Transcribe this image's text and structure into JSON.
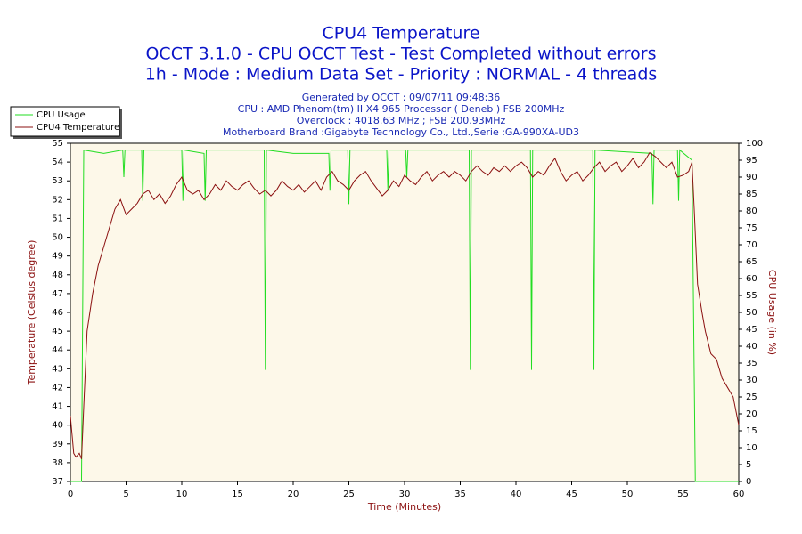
{
  "chart_data": {
    "type": "line",
    "title": "CPU4 Temperature",
    "title_lines": [
      "OCCT 3.1.0 - CPU OCCT Test - Test Completed without errors",
      "1h - Mode : Medium Data Set - Priority : NORMAL - 4 threads"
    ],
    "subtitle_lines": [
      "Generated by OCCT : 09/07/11 09:48:36",
      "CPU : AMD Phenom(tm) II X4 965 Processor ( Deneb ) FSB 200MHz",
      "Overclock : 4018.63 MHz ; FSB 200.93MHz",
      "Motherboard Brand :Gigabyte Technology Co., Ltd.,Serie :GA-990XA-UD3"
    ],
    "xlabel": "Time (Minutes)",
    "ylabel": "Temperature (Celsius degree)",
    "y2label": "CPU Usage (in %)",
    "xlim": [
      0,
      60
    ],
    "xticks": [
      0,
      5,
      10,
      15,
      20,
      25,
      30,
      35,
      40,
      45,
      50,
      55,
      60
    ],
    "ylim": [
      37,
      55
    ],
    "yticks": [
      37,
      38,
      39,
      40,
      41,
      42,
      43,
      44,
      45,
      46,
      47,
      48,
      49,
      50,
      51,
      52,
      53,
      54,
      55
    ],
    "y2lim": [
      0,
      100
    ],
    "y2ticks": [
      0,
      5,
      10,
      15,
      20,
      25,
      30,
      35,
      40,
      45,
      50,
      55,
      60,
      65,
      70,
      75,
      80,
      85,
      90,
      95,
      100
    ],
    "grid": false,
    "legend": "upper left",
    "series": [
      {
        "name": "CPU Usage",
        "color": "#22dd22",
        "axis": "y2",
        "x": [
          0,
          1,
          1.2,
          3,
          4.7,
          4.8,
          4.9,
          6.4,
          6.5,
          6.6,
          10,
          10.1,
          10.2,
          12,
          12.1,
          12.2,
          17.4,
          17.5,
          17.6,
          20,
          23.2,
          23.3,
          23.4,
          24.9,
          25,
          25.1,
          28.4,
          28.5,
          28.6,
          30.1,
          30.2,
          30.3,
          35.8,
          35.9,
          36,
          41.3,
          41.4,
          41.5,
          46.9,
          47,
          47.1,
          52.2,
          52.3,
          52.4,
          54.5,
          54.6,
          54.7,
          55.8,
          56.1,
          60
        ],
        "values": [
          0,
          0,
          98,
          97,
          98,
          90,
          98,
          98,
          83,
          98,
          98,
          83,
          98,
          97,
          83,
          98,
          98,
          33,
          98,
          97,
          97,
          86,
          98,
          98,
          82,
          98,
          98,
          86,
          98,
          98,
          90,
          98,
          98,
          33,
          98,
          98,
          33,
          98,
          98,
          33,
          98,
          97,
          82,
          98,
          98,
          83,
          98,
          95,
          0,
          0
        ]
      },
      {
        "name": "CPU4 Temperature",
        "color": "#8b1010",
        "axis": "y",
        "x": [
          0,
          0.3,
          0.5,
          0.8,
          1,
          1.2,
          1.5,
          2,
          2.5,
          3,
          3.5,
          4,
          4.5,
          5,
          5.5,
          6,
          6.5,
          7,
          7.5,
          8,
          8.5,
          9,
          9.5,
          10,
          10.5,
          11,
          11.5,
          12,
          12.5,
          13,
          13.5,
          14,
          14.5,
          15,
          15.5,
          16,
          16.5,
          17,
          17.5,
          18,
          18.5,
          19,
          19.5,
          20,
          20.5,
          21,
          21.5,
          22,
          22.5,
          23,
          23.5,
          24,
          24.5,
          25,
          25.5,
          26,
          26.5,
          27,
          27.5,
          28,
          28.5,
          29,
          29.5,
          30,
          30.5,
          31,
          31.5,
          32,
          32.5,
          33,
          33.5,
          34,
          34.5,
          35,
          35.5,
          36,
          36.5,
          37,
          37.5,
          38,
          38.5,
          39,
          39.5,
          40,
          40.5,
          41,
          41.5,
          42,
          42.5,
          43,
          43.5,
          44,
          44.5,
          45,
          45.5,
          46,
          46.5,
          47,
          47.5,
          48,
          48.5,
          49,
          49.5,
          50,
          50.5,
          51,
          51.5,
          52,
          52.5,
          53,
          53.5,
          54,
          54.5,
          55,
          55.5,
          55.8,
          56,
          56.3,
          56.7,
          57,
          57.5,
          58,
          58.5,
          59,
          59.5,
          60
        ],
        "values": [
          40.5,
          38.5,
          38.3,
          38.5,
          38.2,
          41,
          45,
          47,
          48.5,
          49.5,
          50.5,
          51.5,
          52,
          51.2,
          51.5,
          51.8,
          52.3,
          52.5,
          52,
          52.3,
          51.8,
          52.2,
          52.8,
          53.2,
          52.5,
          52.3,
          52.5,
          52,
          52.3,
          52.8,
          52.5,
          53,
          52.7,
          52.5,
          52.8,
          53,
          52.6,
          52.3,
          52.5,
          52.2,
          52.5,
          53,
          52.7,
          52.5,
          52.8,
          52.4,
          52.7,
          53,
          52.5,
          53.2,
          53.5,
          53,
          52.8,
          52.5,
          53,
          53.3,
          53.5,
          53,
          52.6,
          52.2,
          52.5,
          53,
          52.7,
          53.3,
          53,
          52.8,
          53.2,
          53.5,
          53,
          53.3,
          53.5,
          53.2,
          53.5,
          53.3,
          53,
          53.5,
          53.8,
          53.5,
          53.3,
          53.7,
          53.5,
          53.8,
          53.5,
          53.8,
          54,
          53.7,
          53.2,
          53.5,
          53.3,
          53.8,
          54.2,
          53.5,
          53,
          53.3,
          53.5,
          53,
          53.3,
          53.7,
          54,
          53.5,
          53.8,
          54,
          53.5,
          53.8,
          54.2,
          53.7,
          54,
          54.5,
          54.3,
          54,
          53.7,
          54,
          53.2,
          53.3,
          53.5,
          54,
          51.5,
          47.5,
          46,
          45,
          43.8,
          43.5,
          42.5,
          42,
          41.5,
          40
        ]
      }
    ]
  }
}
